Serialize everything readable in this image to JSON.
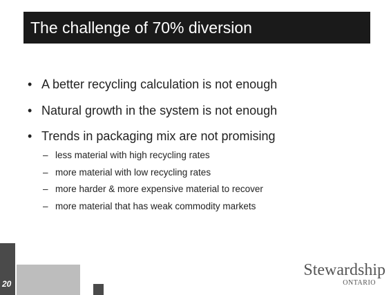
{
  "header": {
    "title": "The challenge of 70% diversion"
  },
  "bullets": [
    "A better recycling calculation is not enough",
    "Natural growth in the system is not enough",
    "Trends in packaging mix are not promising"
  ],
  "sub_bullets": [
    "less material with high recycling rates",
    "more material with low recycling rates",
    "more harder & more expensive material to recover",
    "more material that has weak commodity markets"
  ],
  "footer": {
    "page_number": "20",
    "logo": "Stewardship",
    "logo_sub": "ONTARIO"
  }
}
